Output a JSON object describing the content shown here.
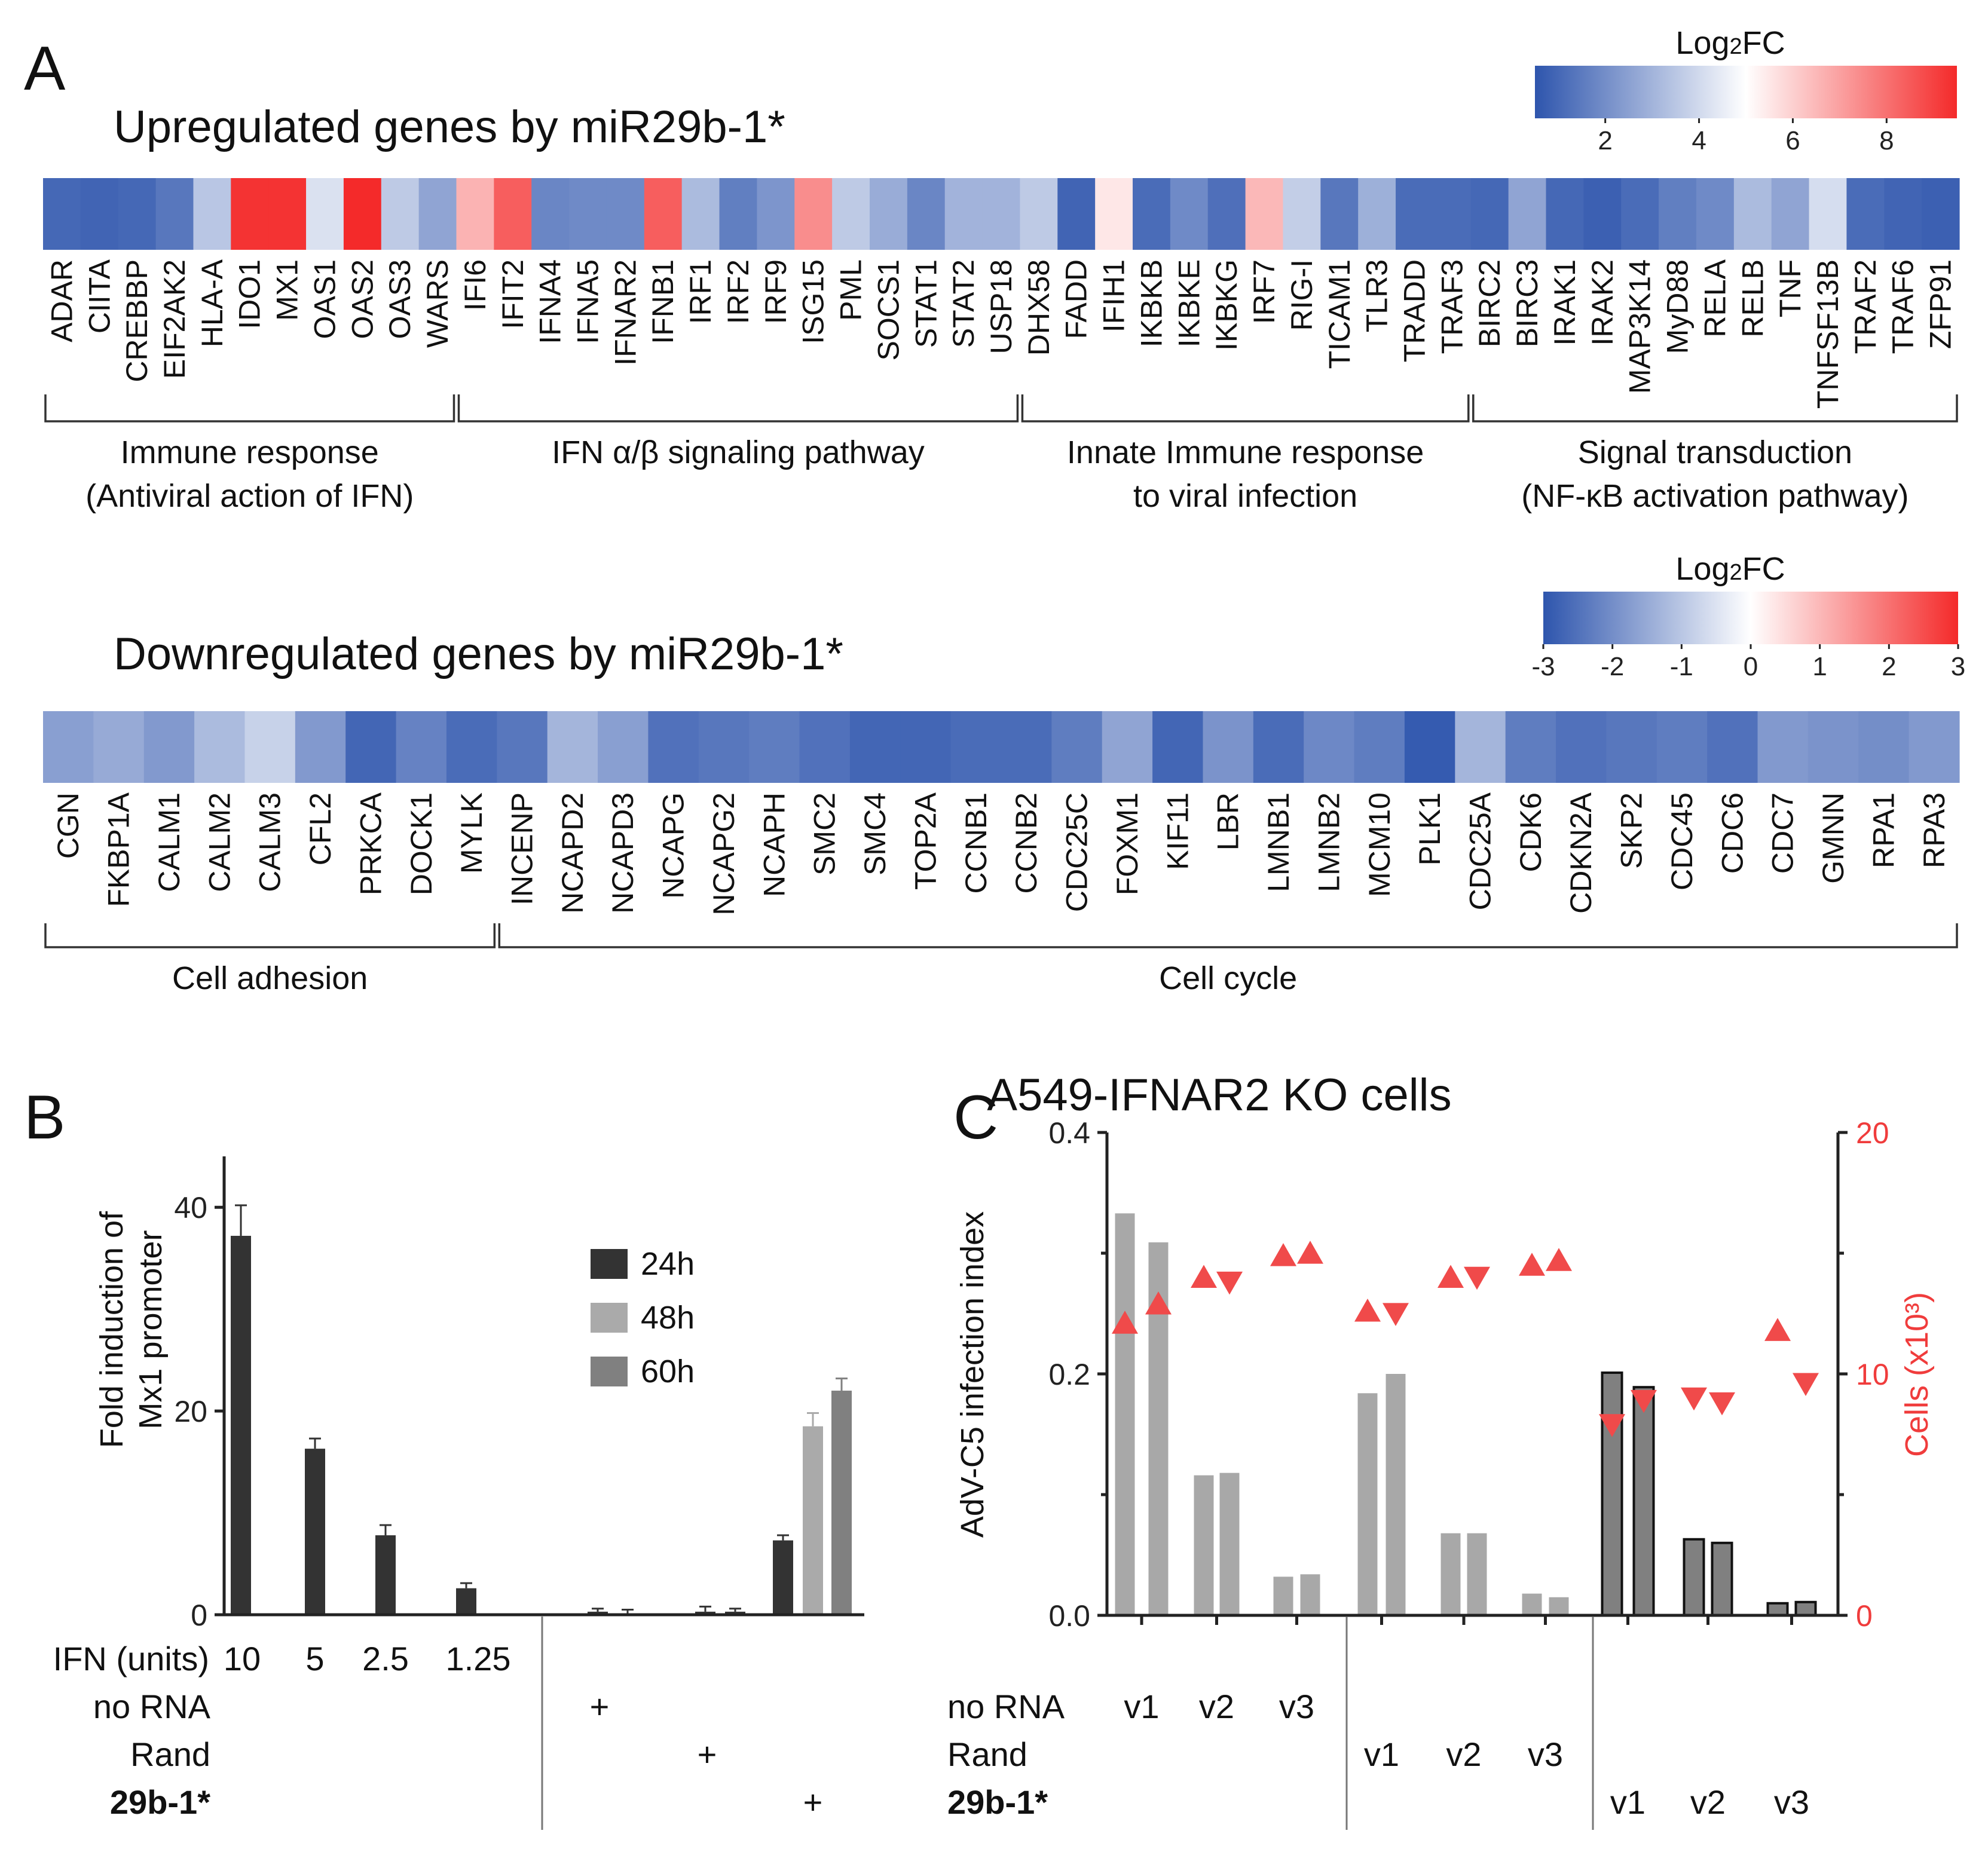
{
  "panels": {
    "A": "A",
    "B": "B",
    "C": "C"
  },
  "chart_data": [
    {
      "type": "heatmap",
      "title": "Upregulated genes by miR29b-1*",
      "colorbar": {
        "label": "Log2FC",
        "label_base": "Log",
        "label_sub": "2",
        "label_end": "FC",
        "range": [
          0.5,
          9.5
        ],
        "ticks": [
          "2",
          "4",
          "6",
          "8"
        ],
        "tick_values": [
          2,
          4,
          6,
          8
        ],
        "colors": [
          "#2e55ad",
          "#ffffff",
          "#f42a2a"
        ]
      },
      "genes": [
        "ADAR",
        "CIITA",
        "CREBBP",
        "EIF2AK2",
        "HLA-A",
        "IDO1",
        "MX1",
        "OAS1",
        "OAS2",
        "OAS3",
        "WARS",
        "IFI6",
        "IFIT2",
        "IFNA4",
        "IFNA5",
        "IFNAR2",
        "IFNB1",
        "IRF1",
        "IRF2",
        "IRF9",
        "ISG15",
        "PML",
        "SOCS1",
        "STAT1",
        "STAT2",
        "USP18",
        "DHX58",
        "FADD",
        "IFIH1",
        "IKBKB",
        "IKBKE",
        "IKBKG",
        "IRF7",
        "RIG-I",
        "TICAM1",
        "TLR3",
        "TRADD",
        "TRAF3",
        "BIRC2",
        "BIRC3",
        "IRAK1",
        "IRAK2",
        "MAP3K14",
        "MyD88",
        "RELA",
        "RELB",
        "TNF",
        "TNFSF13B",
        "TRAF2",
        "TRAF6",
        "ZFP91"
      ],
      "values": [
        1.0,
        0.9,
        1.0,
        1.4,
        3.5,
        9.3,
        9.3,
        4.2,
        9.6,
        3.6,
        2.6,
        6.6,
        8.4,
        1.8,
        1.9,
        1.9,
        8.4,
        3.2,
        1.6,
        2.2,
        7.4,
        3.6,
        2.8,
        1.8,
        3.0,
        3.0,
        3.6,
        0.9,
        5.5,
        1.1,
        1.9,
        1.2,
        6.5,
        3.7,
        1.4,
        2.9,
        1.1,
        1.1,
        1.0,
        2.6,
        1.0,
        0.8,
        1.1,
        1.6,
        1.9,
        3.2,
        2.6,
        4.1,
        1.1,
        0.9,
        0.8
      ],
      "groups": [
        {
          "line1": "Immune response",
          "line2": "(Antiviral action of IFN)",
          "start": 0,
          "end": 10
        },
        {
          "line1": "IFN α/β signaling pathway",
          "line2": "",
          "start": 11,
          "end": 25
        },
        {
          "line1": "Innate Immune response",
          "line2": "to viral infection",
          "start": 26,
          "end": 37
        },
        {
          "line1": "Signal transduction",
          "line2": "(NF-κB activation pathway)",
          "start": 38,
          "end": 50
        }
      ]
    },
    {
      "type": "heatmap",
      "title": "Downregulated genes by miR29b-1*",
      "colorbar": {
        "label": "Log2FC",
        "label_base": "Log",
        "label_sub": "2",
        "label_end": "FC",
        "range": [
          -3,
          3
        ],
        "ticks": [
          "-3",
          "-2",
          "-1",
          "0",
          "1",
          "2",
          "3"
        ],
        "tick_values": [
          -3,
          -2,
          -1,
          0,
          1,
          2,
          3
        ],
        "colors": [
          "#2e55ad",
          "#ffffff",
          "#f42a2a"
        ]
      },
      "genes": [
        "CGN",
        "FKBP1A",
        "CALM1",
        "CALM2",
        "CALM3",
        "CFL2",
        "PRKCA",
        "DOCK1",
        "MYLK",
        "INCENP",
        "NCAPD2",
        "NCAPD3",
        "NCAPG",
        "NCAPG2",
        "NCAPH",
        "SMC2",
        "SMC4",
        "TOP2A",
        "CCNB1",
        "CCNB2",
        "CDC25C",
        "FOXM1",
        "KIF11",
        "LBR",
        "LMNB1",
        "LMNB2",
        "MCM10",
        "PLK1",
        "CDC25A",
        "CDK6",
        "CDKN2A",
        "SKP2",
        "CDC45",
        "CDC6",
        "CDC7",
        "GMNN",
        "RPA1",
        "RPA3"
      ],
      "values": [
        -1.7,
        -1.5,
        -1.8,
        -1.2,
        -0.8,
        -1.8,
        -2.7,
        -2.2,
        -2.6,
        -2.4,
        -1.3,
        -1.7,
        -2.5,
        -2.4,
        -2.3,
        -2.5,
        -2.7,
        -2.7,
        -2.6,
        -2.6,
        -2.3,
        -1.6,
        -2.7,
        -1.9,
        -2.6,
        -2.1,
        -2.3,
        -2.9,
        -1.3,
        -2.3,
        -2.5,
        -2.4,
        -2.3,
        -2.5,
        -1.8,
        -1.9,
        -2.0,
        -1.8
      ],
      "groups": [
        {
          "line1": "Cell adhesion",
          "line2": "",
          "start": 0,
          "end": 8
        },
        {
          "line1": "Cell cycle",
          "line2": "",
          "start": 9,
          "end": 37
        }
      ]
    },
    {
      "type": "bar",
      "ylabel_line1": "Fold induction of",
      "ylabel_line2": "Mx1 promoter",
      "ylim": [
        0,
        45
      ],
      "yticks": [
        "0",
        "20",
        "40"
      ],
      "ytick_values": [
        0,
        20,
        40
      ],
      "series": [
        {
          "name": "24h",
          "color": "#333333"
        },
        {
          "name": "48h",
          "color": "#aaaaaa"
        },
        {
          "name": "60h",
          "color": "#808080"
        }
      ],
      "bars": [
        {
          "value": 37.2,
          "error": 3.0,
          "series": 0
        },
        {
          "value": 16.3,
          "error": 1.0,
          "series": 0
        },
        {
          "value": 7.8,
          "error": 1.0,
          "series": 0
        },
        {
          "value": 2.6,
          "error": 0.5,
          "series": 0
        },
        {
          "value": 0.0,
          "error": 0.0,
          "series": 0
        },
        {
          "value": 0.3,
          "error": 0.3,
          "series": 0
        },
        {
          "value": 0.0,
          "error": 0.5,
          "series": 0
        },
        {
          "value": 0.0,
          "error": 0.0,
          "series": 0
        },
        {
          "value": 0.3,
          "error": 0.5,
          "series": 0
        },
        {
          "value": 0.3,
          "error": 0.3,
          "series": 0
        },
        {
          "value": 7.3,
          "error": 0.5,
          "series": 0
        },
        {
          "value": 18.5,
          "error": 1.3,
          "series": 1
        },
        {
          "value": 22.0,
          "error": 1.2,
          "series": 2
        }
      ],
      "row_labels": {
        "ifn": "IFN (units)",
        "norna": "no RNA",
        "rand": "Rand",
        "mir": "29b-1*"
      },
      "ifn_doses": [
        "10",
        "5",
        "2.5",
        "1.25"
      ],
      "plus": "+"
    },
    {
      "type": "bar",
      "title": "A549-IFNAR2 KO cells",
      "ylabel": "AdV-C5 infection index",
      "y2label": "Cells (x10³)",
      "ylim": [
        0,
        0.4
      ],
      "y2lim": [
        0,
        20
      ],
      "yticks": [
        "0.0",
        "0.2",
        "0.4"
      ],
      "ytick_values": [
        0,
        0.2,
        0.4
      ],
      "y2ticks": [
        "0",
        "10",
        "20"
      ],
      "y2tick_values": [
        0,
        10,
        20
      ],
      "colors": {
        "gray": "#a8a8a8",
        "dark": "#808080",
        "triangle": "#f04a4a",
        "axis2": "#f03c3c"
      },
      "conditions": [
        "no RNA",
        "Rand",
        "29b-1*"
      ],
      "variants": [
        "v1",
        "v2",
        "v3"
      ],
      "infection_index": [
        0.333,
        0.309,
        0.116,
        0.118,
        0.032,
        0.034,
        0.184,
        0.2,
        0.068,
        0.068,
        0.018,
        0.015,
        0.201,
        0.189,
        0.063,
        0.06,
        0.01,
        0.011
      ],
      "cells_x1000": [
        12.1,
        12.9,
        14.0,
        13.8,
        14.9,
        15.0,
        12.6,
        12.5,
        14.0,
        14.0,
        14.5,
        14.7,
        7.9,
        8.9,
        9.0,
        8.8,
        11.8,
        9.6
      ],
      "triangle_up": [
        true,
        true,
        true,
        false,
        true,
        true,
        true,
        false,
        true,
        false,
        true,
        true,
        false,
        false,
        false,
        false,
        true,
        false
      ]
    }
  ]
}
